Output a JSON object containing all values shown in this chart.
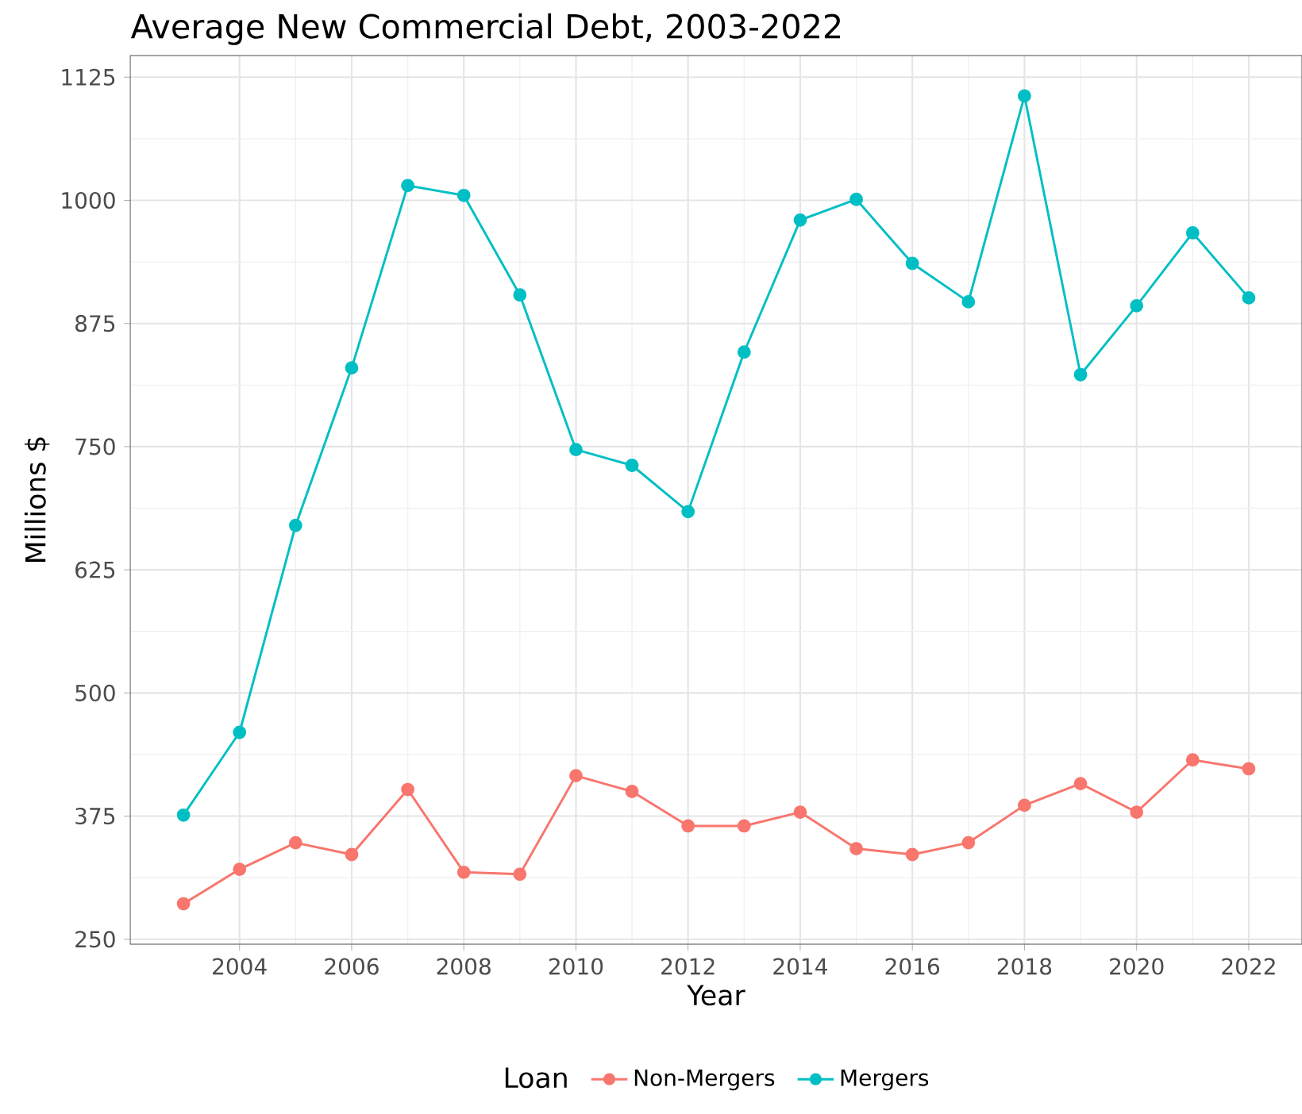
{
  "chart_data": {
    "type": "line",
    "title": "Average New Commercial Debt, 2003-2022",
    "xlabel": "Year",
    "ylabel": "Millions $",
    "legend_title": "Loan",
    "x": [
      2003,
      2004,
      2005,
      2006,
      2007,
      2008,
      2009,
      2010,
      2011,
      2012,
      2013,
      2014,
      2015,
      2016,
      2017,
      2018,
      2019,
      2020,
      2021,
      2022
    ],
    "series": [
      {
        "name": "Non-Mergers",
        "color": "#f8766d",
        "values": [
          286,
          321,
          348,
          336,
          402,
          318,
          316,
          416,
          400,
          365,
          365,
          379,
          342,
          336,
          348,
          386,
          408,
          379,
          432,
          423
        ]
      },
      {
        "name": "Mergers",
        "color": "#00bfc4",
        "values": [
          376,
          460,
          670,
          830,
          1015,
          1005,
          904,
          747,
          731,
          684,
          846,
          980,
          1001,
          936,
          897,
          1106,
          823,
          893,
          967,
          901
        ]
      }
    ],
    "xlim": [
      2002.05,
      2022.95
    ],
    "ylim": [
      245,
      1147
    ],
    "xticks": [
      2004,
      2006,
      2008,
      2010,
      2012,
      2014,
      2016,
      2018,
      2020,
      2022
    ],
    "yticks": [
      250,
      375,
      500,
      625,
      750,
      875,
      1000,
      1125
    ],
    "grid": true,
    "legend": "bottom",
    "marker": "circle",
    "line_style": "solid"
  }
}
